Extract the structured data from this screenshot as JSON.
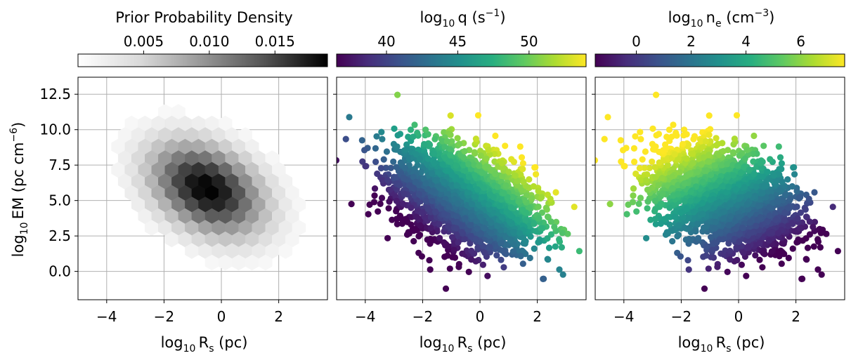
{
  "chart_data": [
    {
      "type": "heatmap",
      "subtype": "hexbin",
      "panel": "left",
      "xlabel": {
        "prefix": "log",
        "prefix_sub": "10",
        "var": "R",
        "var_sub": "s",
        "unit": "(pc)"
      },
      "ylabel": {
        "prefix": "log",
        "prefix_sub": "10",
        "var": "EM",
        "unit_pre": "(pc cm",
        "unit_sup": "−6",
        "unit_post": ")"
      },
      "xlim": [
        -5.0,
        3.7
      ],
      "ylim": [
        -2.0,
        13.7
      ],
      "xticks": [
        -4,
        -2,
        0,
        2
      ],
      "xtick_labels": [
        "−4",
        "−2",
        "0",
        "2"
      ],
      "yticks": [
        0.0,
        2.5,
        5.0,
        7.5,
        10.0,
        12.5
      ],
      "ytick_labels": [
        "0.0",
        "2.5",
        "5.0",
        "7.5",
        "10.0",
        "12.5"
      ],
      "grid": true,
      "colormap": "Greys",
      "colorbar": {
        "title": "Prior Probability Density",
        "range": [
          0.0,
          0.019
        ],
        "ticks": [
          0.005,
          0.01,
          0.015
        ],
        "tick_labels": [
          "0.005",
          "0.010",
          "0.015"
        ],
        "location": "top"
      },
      "density_model": {
        "center_x": -0.5,
        "center_y": 5.8,
        "sigma_x": 1.15,
        "sigma_y": 1.9,
        "correlation": -0.35,
        "peak": 0.019
      }
    },
    {
      "type": "scatter",
      "panel": "middle",
      "xlabel": {
        "prefix": "log",
        "prefix_sub": "10",
        "var": "R",
        "var_sub": "s",
        "unit": "(pc)"
      },
      "xlim": [
        -5.0,
        3.7
      ],
      "ylim": [
        -2.0,
        13.7
      ],
      "xticks": [
        -4,
        -2,
        0,
        2
      ],
      "xtick_labels": [
        "−4",
        "−2",
        "0",
        "2"
      ],
      "yticks": [
        0.0,
        2.5,
        5.0,
        7.5,
        10.0,
        12.5
      ],
      "grid": true,
      "colormap": "viridis",
      "color_variable": "log10 q",
      "colorbar": {
        "title": {
          "prefix": "log",
          "prefix_sub": "10",
          "var": "q",
          "unit_pre": "(s",
          "unit_sup": "−1",
          "unit_post": ")"
        },
        "range": [
          36.5,
          54.0
        ],
        "ticks": [
          40,
          45,
          50
        ],
        "tick_labels": [
          "40",
          "45",
          "50"
        ],
        "location": "top"
      },
      "point_cloud": {
        "center_x": -0.5,
        "center_y": 5.2,
        "sigma_x": 1.2,
        "sigma_y": 1.8,
        "correlation": -0.35,
        "n_points": 2600
      }
    },
    {
      "type": "scatter",
      "panel": "right",
      "xlabel": {
        "prefix": "log",
        "prefix_sub": "10",
        "var": "R",
        "var_sub": "s",
        "unit": "(pc)"
      },
      "xlim": [
        -5.0,
        3.7
      ],
      "ylim": [
        -2.0,
        13.7
      ],
      "xticks": [
        -4,
        -2,
        0,
        2
      ],
      "xtick_labels": [
        "−4",
        "−2",
        "0",
        "2"
      ],
      "yticks": [
        0.0,
        2.5,
        5.0,
        7.5,
        10.0,
        12.5
      ],
      "grid": true,
      "colormap": "viridis",
      "color_variable": "log10 ne",
      "colorbar": {
        "title": {
          "prefix": "log",
          "prefix_sub": "10",
          "var": "n",
          "var_sub": "e",
          "unit_pre": "(cm",
          "unit_sup": "−3",
          "unit_post": ")"
        },
        "range": [
          -1.5,
          7.6
        ],
        "ticks": [
          0,
          2,
          4,
          6
        ],
        "tick_labels": [
          "0",
          "2",
          "4",
          "6"
        ],
        "location": "top"
      },
      "point_cloud": {
        "center_x": -0.5,
        "center_y": 5.2,
        "sigma_x": 1.2,
        "sigma_y": 1.8,
        "correlation": -0.35,
        "n_points": 2600
      }
    }
  ]
}
